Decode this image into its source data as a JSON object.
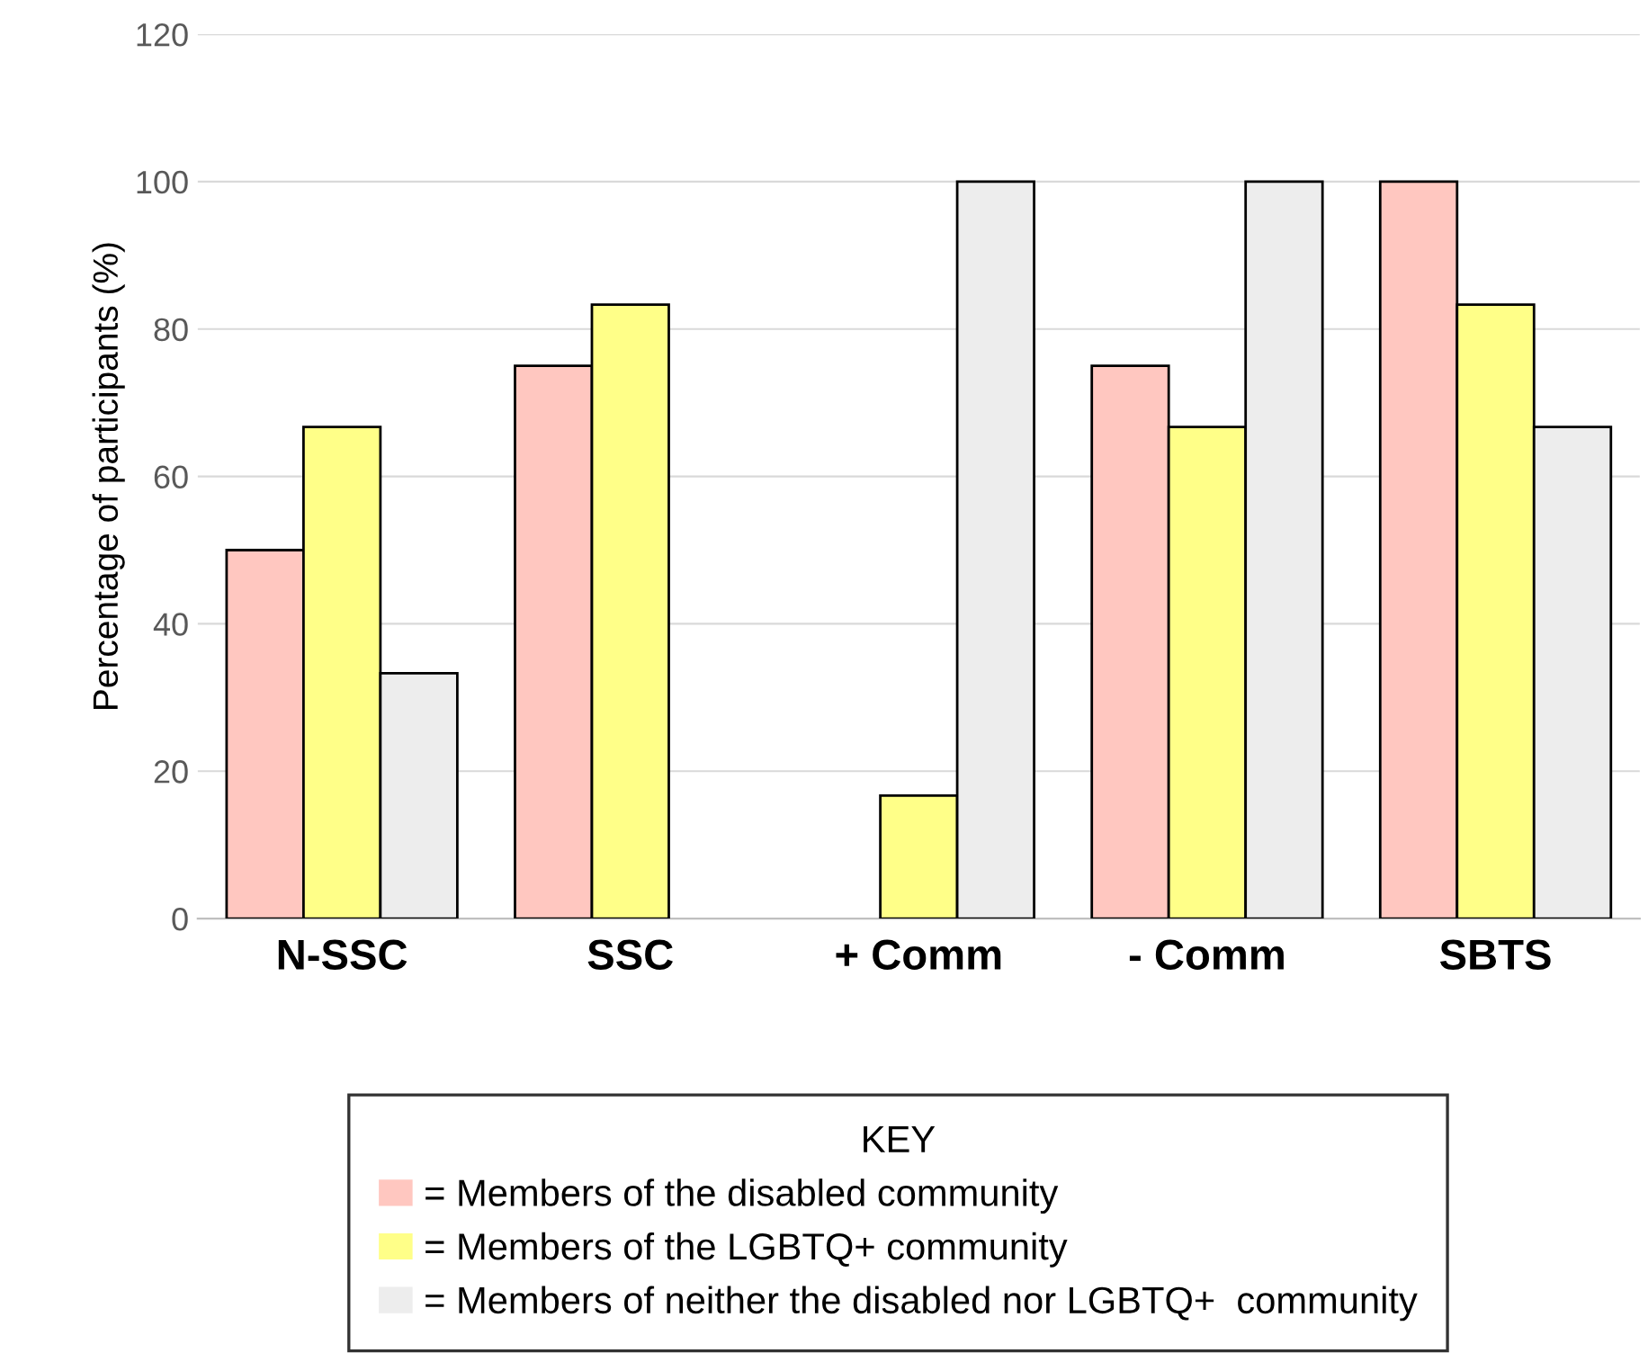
{
  "chart_data": {
    "type": "bar",
    "ylabel": "Percentage of participants (%)",
    "categories": [
      "N-SSC",
      "SSC",
      "+ Comm",
      "- Comm",
      "SBTS"
    ],
    "series": [
      {
        "name": "= Members of the disabled community",
        "color": "#ffc7c0",
        "values": [
          50,
          75,
          null,
          75,
          100
        ]
      },
      {
        "name": "= Members of the LGBTQ+ community",
        "color": "#ffff88",
        "values": [
          66.7,
          83.3,
          16.7,
          66.7,
          83.3
        ]
      },
      {
        "name": "= Members of neither the disabled nor LGBTQ+  community",
        "color": "#ededed",
        "values": [
          33.3,
          null,
          100,
          100,
          66.7
        ]
      }
    ],
    "ylim": [
      0,
      120
    ],
    "yticks": [
      0,
      20,
      40,
      60,
      80,
      100,
      120
    ],
    "grid": "y",
    "legend": "bottom",
    "legend_title": "KEY"
  }
}
